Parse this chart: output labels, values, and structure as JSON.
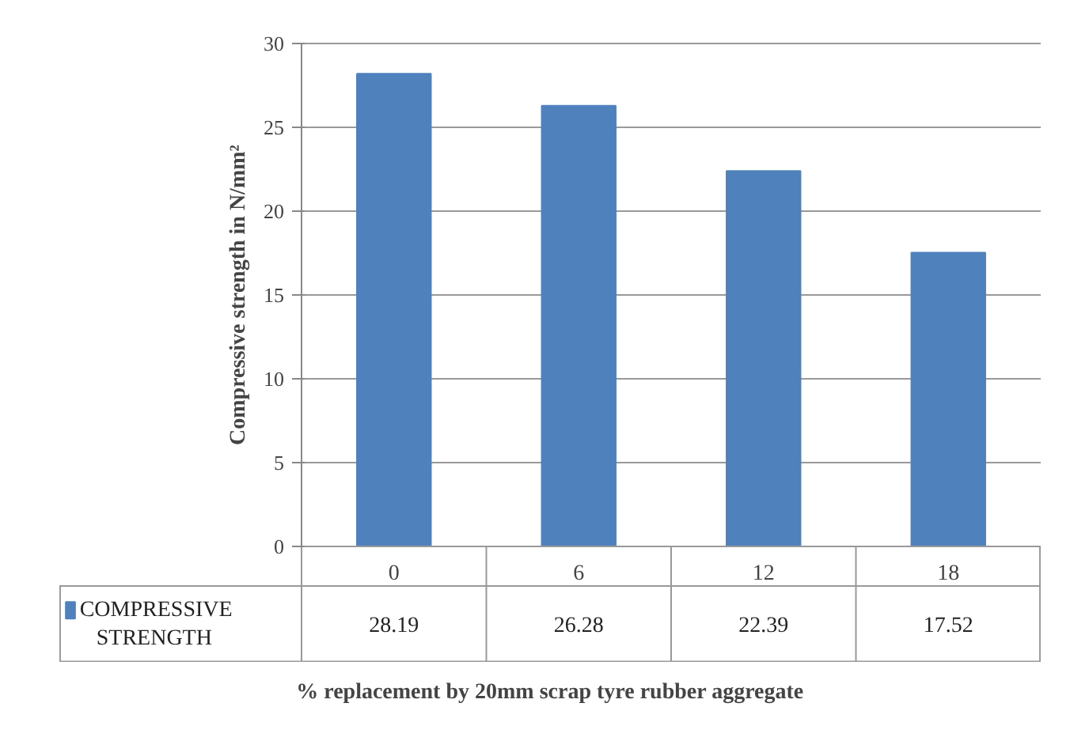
{
  "chart_data": {
    "type": "bar",
    "ylabel": "Compressive strength in N/mm²",
    "xlabel": "% replacement by 20mm scrap tyre rubber aggregate",
    "categories": [
      "0",
      "6",
      "12",
      "18"
    ],
    "series": [
      {
        "name": "COMPRESSIVE STRENGTH",
        "color": "#4f81bd",
        "values": [
          28.19,
          26.28,
          22.39,
          17.52
        ]
      }
    ],
    "ylim": [
      0,
      30
    ],
    "yticks": [
      0,
      5,
      10,
      15,
      20,
      25,
      30
    ],
    "grid": "y",
    "legend": "bottom left",
    "data_labels": true
  }
}
